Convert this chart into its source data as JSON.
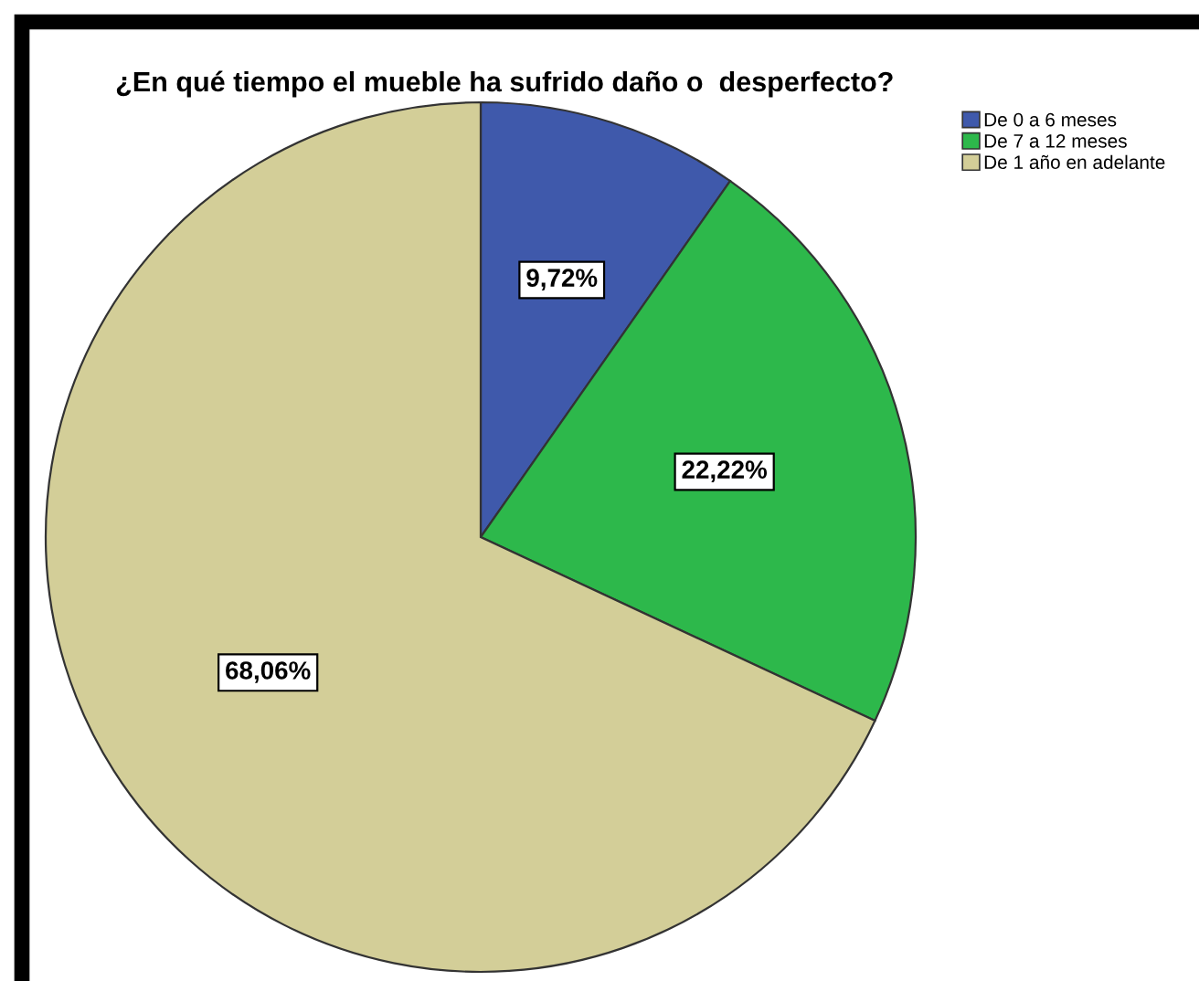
{
  "chart_data": {
    "type": "pie",
    "title": "¿En qué tiempo el mueble ha sufrido daño o  desperfecto?",
    "categories": [
      "De 0 a 6 meses",
      "De 7 a 12 meses",
      "De 1 año en adelante"
    ],
    "values": [
      9.72,
      22.22,
      68.06
    ],
    "value_labels": [
      "9,72%",
      "22,22%",
      "68,06%"
    ],
    "colors": [
      "#3f59ab",
      "#2db84b",
      "#d3ce98"
    ],
    "legend": "top right"
  }
}
